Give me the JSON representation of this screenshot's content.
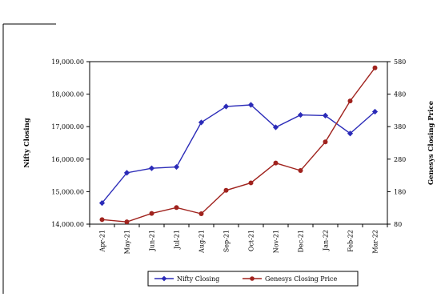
{
  "chart_data": {
    "type": "line",
    "categories": [
      "Apr-21",
      "May-21",
      "Jun-21",
      "Jul-21",
      "Aug-21",
      "Sep-21",
      "Oct-21",
      "Nov-21",
      "Dec-21",
      "Jan-22",
      "Feb-22",
      "Mar-22"
    ],
    "series": [
      {
        "name": "Nifty Closing",
        "axis": "left",
        "color": "#2b2bb8",
        "marker": "diamond",
        "values": [
          14650,
          15580,
          15720,
          15760,
          17130,
          17620,
          17670,
          16980,
          17360,
          17340,
          16790,
          17460
        ]
      },
      {
        "name": "Genesys Closing Price",
        "axis": "right",
        "color": "#a0231e",
        "marker": "circle",
        "values": [
          94,
          87,
          113,
          131,
          112,
          184,
          207,
          268,
          245,
          333,
          459,
          561
        ]
      }
    ],
    "ylabel": "Nifty Closing",
    "y2label": "Genesys Closing Price",
    "ylim": [
      14000,
      19000
    ],
    "y2lim": [
      80,
      580
    ],
    "yticks": [
      "14,000.00",
      "15,000.00",
      "16,000.00",
      "17,000.00",
      "18,000.00",
      "19,000.00"
    ],
    "y2ticks": [
      "80",
      "180",
      "280",
      "380",
      "480",
      "580"
    ],
    "legend_position": "bottom",
    "grid": false
  }
}
